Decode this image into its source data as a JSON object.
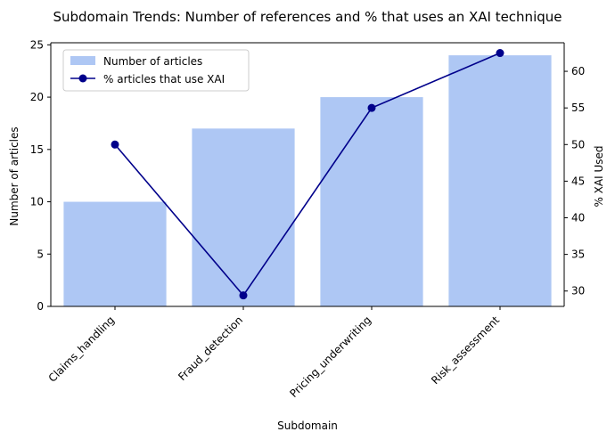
{
  "chart_data": {
    "type": "bar",
    "title": "Subdomain Trends: Number of references and % that uses an XAI technique",
    "xlabel": "Subdomain",
    "ylabel": "Number of articles",
    "y2label": "% XAI Used",
    "categories": [
      "Claims_handling",
      "Fraud_detection",
      "Pricing_underwriting",
      "Risk_assessment"
    ],
    "series": [
      {
        "name": "Number of articles",
        "type": "bar",
        "axis": "left",
        "values": [
          10,
          17,
          20,
          24
        ],
        "color": "#aec7f4"
      },
      {
        "name": "% articles that use XAI",
        "type": "line",
        "axis": "right",
        "values": [
          50.0,
          29.4,
          55.0,
          62.5
        ],
        "color": "#00008b"
      }
    ],
    "ylim": [
      0,
      25.2
    ],
    "y2lim": [
      27.9,
      63.9
    ],
    "yticks": [
      "0",
      "5",
      "10",
      "15",
      "20",
      "25"
    ],
    "y2ticks": [
      "30",
      "35",
      "40",
      "45",
      "50",
      "55",
      "60"
    ],
    "legend": "top-left",
    "grid": false
  }
}
